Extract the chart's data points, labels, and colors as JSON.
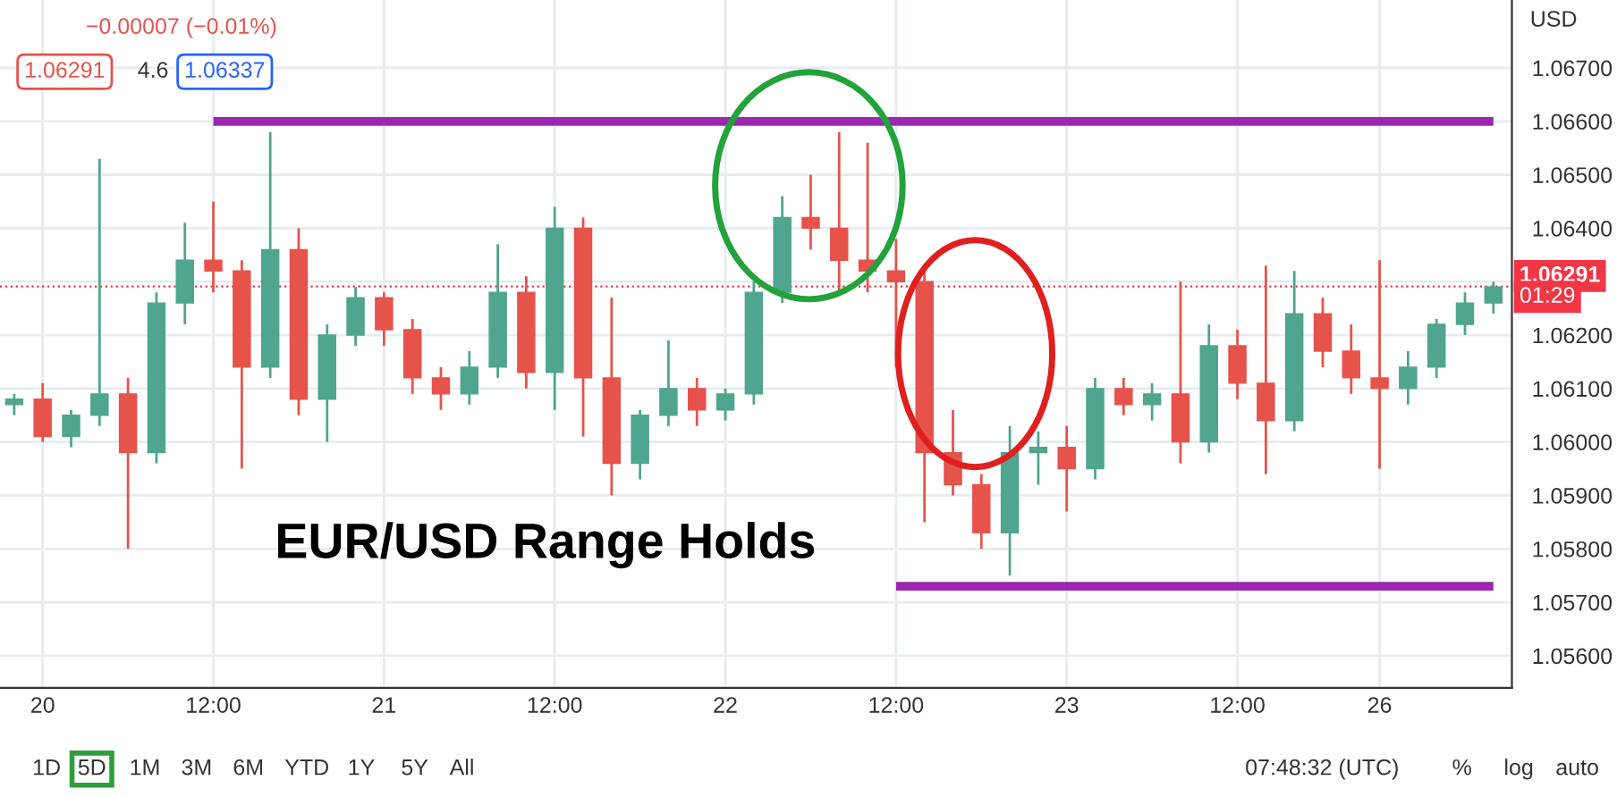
{
  "chart_data": {
    "type": "candlestick",
    "ylabel": "USD",
    "categories": [
      null,
      "20",
      null,
      null,
      null,
      null,
      null,
      "12:00",
      null,
      null,
      null,
      null,
      null,
      "21",
      null,
      null,
      null,
      null,
      null,
      "12:00",
      null,
      null,
      null,
      null,
      null,
      "22",
      null,
      null,
      null,
      null,
      null,
      "12:00",
      null,
      null,
      null,
      null,
      null,
      "23",
      null,
      null,
      null,
      null,
      null,
      "12:00",
      null,
      null,
      null,
      null,
      "26",
      null,
      null,
      null,
      null
    ],
    "ohlc": [
      [
        1.0607,
        1.0609,
        1.0605,
        1.0608
      ],
      [
        1.0608,
        1.0611,
        1.06,
        1.0601
      ],
      [
        1.0601,
        1.0606,
        1.0599,
        1.0605
      ],
      [
        1.0605,
        1.0653,
        1.0603,
        1.0609
      ],
      [
        1.0609,
        1.0612,
        1.058,
        1.0598
      ],
      [
        1.0598,
        1.0628,
        1.0596,
        1.0626
      ],
      [
        1.0626,
        1.0641,
        1.0622,
        1.0634
      ],
      [
        1.0634,
        1.0645,
        1.0628,
        1.0632
      ],
      [
        1.0632,
        1.0634,
        1.0595,
        1.0614
      ],
      [
        1.0614,
        1.0658,
        1.0612,
        1.0636
      ],
      [
        1.0636,
        1.064,
        1.0605,
        1.0608
      ],
      [
        1.0608,
        1.0622,
        1.06,
        1.062
      ],
      [
        1.062,
        1.0629,
        1.0618,
        1.0627
      ],
      [
        1.0627,
        1.0628,
        1.0618,
        1.0621
      ],
      [
        1.0621,
        1.0623,
        1.0609,
        1.0612
      ],
      [
        1.0612,
        1.0614,
        1.0606,
        1.0609
      ],
      [
        1.0609,
        1.0617,
        1.0607,
        1.0614
      ],
      [
        1.0614,
        1.0637,
        1.0612,
        1.0628
      ],
      [
        1.0628,
        1.0631,
        1.061,
        1.0613
      ],
      [
        1.0613,
        1.0644,
        1.0606,
        1.064
      ],
      [
        1.064,
        1.0642,
        1.0601,
        1.0612
      ],
      [
        1.0612,
        1.0627,
        1.059,
        1.0596
      ],
      [
        1.0596,
        1.0606,
        1.0593,
        1.0605
      ],
      [
        1.0605,
        1.0619,
        1.0603,
        1.061
      ],
      [
        1.061,
        1.0612,
        1.0603,
        1.0606
      ],
      [
        1.0606,
        1.061,
        1.0604,
        1.0609
      ],
      [
        1.0609,
        1.063,
        1.0607,
        1.0628
      ],
      [
        1.0628,
        1.0646,
        1.0626,
        1.0642
      ],
      [
        1.0642,
        1.065,
        1.0636,
        1.064
      ],
      [
        1.064,
        1.0658,
        1.0628,
        1.0634
      ],
      [
        1.0634,
        1.0656,
        1.0628,
        1.0632
      ],
      [
        1.0632,
        1.0638,
        1.0614,
        1.063
      ],
      [
        1.063,
        1.0632,
        1.0585,
        1.0598
      ],
      [
        1.0598,
        1.0606,
        1.059,
        1.0592
      ],
      [
        1.0592,
        1.0594,
        1.058,
        1.0583
      ],
      [
        1.0583,
        1.0603,
        1.0575,
        1.0598
      ],
      [
        1.0598,
        1.0602,
        1.0592,
        1.0599
      ],
      [
        1.0599,
        1.0603,
        1.0587,
        1.0595
      ],
      [
        1.0595,
        1.0612,
        1.0593,
        1.061
      ],
      [
        1.061,
        1.0612,
        1.0605,
        1.0607
      ],
      [
        1.0607,
        1.0611,
        1.0604,
        1.0609
      ],
      [
        1.0609,
        1.063,
        1.0596,
        1.06
      ],
      [
        1.06,
        1.0622,
        1.0598,
        1.0618
      ],
      [
        1.0618,
        1.0621,
        1.0608,
        1.0611
      ],
      [
        1.0611,
        1.0633,
        1.0594,
        1.0604
      ],
      [
        1.0604,
        1.0632,
        1.0602,
        1.0624
      ],
      [
        1.0624,
        1.0627,
        1.0614,
        1.0617
      ],
      [
        1.0617,
        1.0622,
        1.0609,
        1.0612
      ],
      [
        1.0612,
        1.0634,
        1.0595,
        1.061
      ],
      [
        1.061,
        1.0617,
        1.0607,
        1.0614
      ],
      [
        1.0614,
        1.0623,
        1.0612,
        1.0622
      ],
      [
        1.0622,
        1.0628,
        1.062,
        1.0626
      ],
      [
        1.0626,
        1.063,
        1.0624,
        1.0629
      ]
    ],
    "series": [
      {
        "type": "line",
        "color": "#9c27b0",
        "values": [
          null,
          null,
          null,
          null,
          null,
          null,
          null,
          1.066,
          1.066,
          1.066,
          1.066,
          1.066,
          1.066,
          1.066,
          1.066,
          1.066,
          1.066,
          1.066,
          1.066,
          1.066,
          1.066,
          1.066,
          1.066,
          1.066,
          1.066,
          1.066,
          1.066,
          1.066,
          1.066,
          1.066,
          1.066,
          1.066,
          1.066,
          1.066,
          1.066,
          1.066,
          1.066,
          1.066,
          1.066,
          1.066,
          1.066,
          1.066,
          1.066,
          1.066,
          1.066,
          1.066,
          1.066,
          1.066,
          1.066,
          1.066,
          1.066,
          1.066,
          1.066
        ]
      },
      {
        "type": "line",
        "color": "#9c27b0",
        "values": [
          null,
          null,
          null,
          null,
          null,
          null,
          null,
          null,
          null,
          null,
          null,
          null,
          null,
          null,
          null,
          null,
          null,
          null,
          null,
          null,
          null,
          null,
          null,
          null,
          null,
          null,
          null,
          null,
          null,
          null,
          null,
          1.0573,
          1.0573,
          1.0573,
          1.0573,
          1.0573,
          1.0573,
          1.0573,
          1.0573,
          1.0573,
          1.0573,
          1.0573,
          1.0573,
          1.0573,
          1.0573,
          1.0573,
          1.0573,
          1.0573,
          1.0573,
          1.0573,
          1.0573,
          1.0573,
          1.0573
        ]
      }
    ],
    "ref_lines": [
      {
        "axis": "y",
        "value": 1.06291,
        "label": "1.06291",
        "color": "#f23645",
        "line_style": "dotted"
      }
    ],
    "annotations": [
      "EUR/USD Range Holds",
      "−0.00007 (−0.01%)",
      "1.06291",
      "4.6",
      "1.06337",
      "01:29",
      "1D",
      "5D",
      "1M",
      "3M",
      "6M",
      "YTD",
      "1Y",
      "5Y",
      "All",
      "07:48:32 (UTC)",
      "%",
      "log",
      "auto"
    ],
    "ylim": [
      1.0554,
      1.06827
    ],
    "yticks": [
      {
        "value": 1.056,
        "label": "1.05600"
      },
      {
        "value": 1.057,
        "label": "1.05700"
      },
      {
        "value": 1.058,
        "label": "1.05800"
      },
      {
        "value": 1.059,
        "label": "1.05900"
      },
      {
        "value": 1.06,
        "label": "1.06000"
      },
      {
        "value": 1.061,
        "label": "1.06100"
      },
      {
        "value": 1.062,
        "label": "1.06200"
      },
      {
        "value": 1.063,
        "label": null
      },
      {
        "value": 1.064,
        "label": "1.06400"
      },
      {
        "value": 1.065,
        "label": "1.06500"
      },
      {
        "value": 1.066,
        "label": "1.06600"
      },
      {
        "value": 1.067,
        "label": "1.06700"
      }
    ],
    "grid": true
  }
}
